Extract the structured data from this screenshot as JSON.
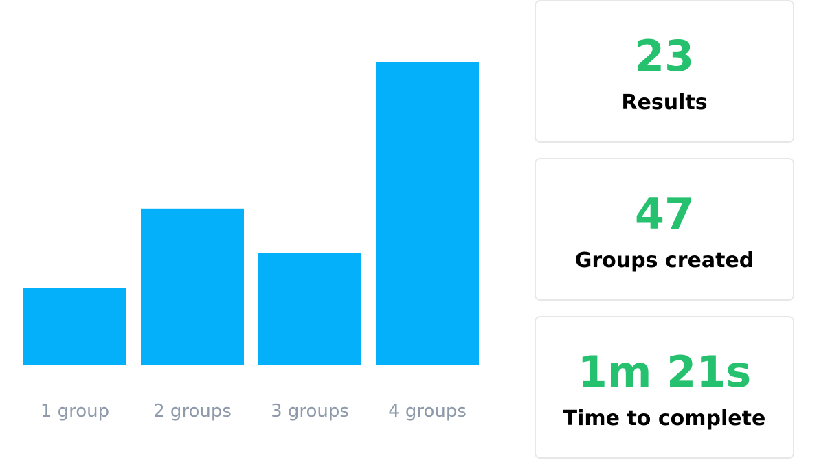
{
  "chart_data": {
    "type": "bar",
    "categories": [
      "1 group",
      "2 groups",
      "3 groups",
      "4 groups"
    ],
    "values": [
      5,
      10.2,
      7.3,
      19.8
    ],
    "ylim": [
      0,
      20
    ],
    "title": "",
    "xlabel": "",
    "ylabel": "",
    "grid": false,
    "bar_color": "#04b0fa",
    "label_color": "#8e9aaa"
  },
  "stats": [
    {
      "value": "23",
      "label": "Results"
    },
    {
      "value": "47",
      "label": "Groups created"
    },
    {
      "value": "1m 21s",
      "label": "Time to complete"
    }
  ],
  "colors": {
    "stat_value": "#25c16f",
    "stat_label": "#000000",
    "card_border": "#e7e7e7"
  }
}
